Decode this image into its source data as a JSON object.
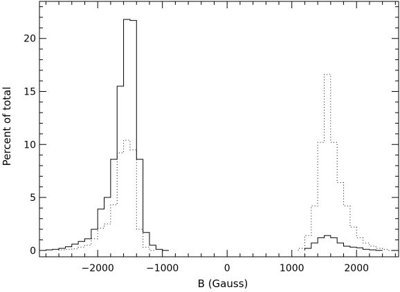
{
  "chart_data": {
    "type": "histogram",
    "xlabel": "B (Gauss)",
    "ylabel": "Percent of total",
    "xlim": [
      -2900,
      2650
    ],
    "ylim": [
      -0.6,
      23.5
    ],
    "xticks": [
      -2000,
      -1000,
      0,
      1000,
      2000
    ],
    "yticks": [
      0,
      5,
      10,
      15,
      20
    ],
    "grid": false,
    "legend": "none",
    "bin_width": 100,
    "series": [
      {
        "style": "solid",
        "color": "#000000",
        "bins": [
          [
            -2800,
            0.05
          ],
          [
            -2700,
            0.1
          ],
          [
            -2600,
            0.2
          ],
          [
            -2500,
            0.35
          ],
          [
            -2400,
            0.6
          ],
          [
            -2300,
            0.85
          ],
          [
            -2200,
            1.1
          ],
          [
            -2100,
            2.0
          ],
          [
            -2000,
            3.9
          ],
          [
            -1900,
            5.0
          ],
          [
            -1800,
            8.6
          ],
          [
            -1700,
            15.5
          ],
          [
            -1600,
            21.8
          ],
          [
            -1500,
            21.7
          ],
          [
            -1400,
            8.6
          ],
          [
            -1300,
            1.7
          ],
          [
            -1200,
            0.5
          ],
          [
            -1100,
            0.1
          ],
          [
            -1000,
            0.0
          ],
          [
            1200,
            0.2
          ],
          [
            1300,
            0.7
          ],
          [
            1400,
            1.2
          ],
          [
            1500,
            1.4
          ],
          [
            1600,
            1.2
          ],
          [
            1700,
            0.7
          ],
          [
            1800,
            0.4
          ],
          [
            1900,
            0.3
          ],
          [
            2000,
            0.25
          ],
          [
            2100,
            0.1
          ],
          [
            2200,
            0.05
          ],
          [
            2300,
            0.0
          ]
        ]
      },
      {
        "style": "dotted",
        "color": "#000000",
        "bins": [
          [
            -2600,
            0.05
          ],
          [
            -2500,
            0.1
          ],
          [
            -2400,
            0.15
          ],
          [
            -2300,
            0.3
          ],
          [
            -2200,
            0.5
          ],
          [
            -2100,
            1.1
          ],
          [
            -2000,
            2.1
          ],
          [
            -1900,
            2.5
          ],
          [
            -1800,
            4.3
          ],
          [
            -1700,
            9.2
          ],
          [
            -1600,
            10.4
          ],
          [
            -1500,
            9.5
          ],
          [
            -1400,
            2.0
          ],
          [
            -1300,
            0.3
          ],
          [
            -1200,
            0.0
          ],
          [
            1100,
            0.2
          ],
          [
            1200,
            1.4
          ],
          [
            1300,
            4.2
          ],
          [
            1400,
            10.2
          ],
          [
            1500,
            16.6
          ],
          [
            1600,
            10.2
          ],
          [
            1700,
            6.4
          ],
          [
            1800,
            4.2
          ],
          [
            1900,
            2.2
          ],
          [
            2000,
            1.2
          ],
          [
            2100,
            0.7
          ],
          [
            2200,
            0.4
          ],
          [
            2300,
            0.2
          ],
          [
            2400,
            0.1
          ],
          [
            2500,
            0.0
          ]
        ]
      }
    ]
  }
}
